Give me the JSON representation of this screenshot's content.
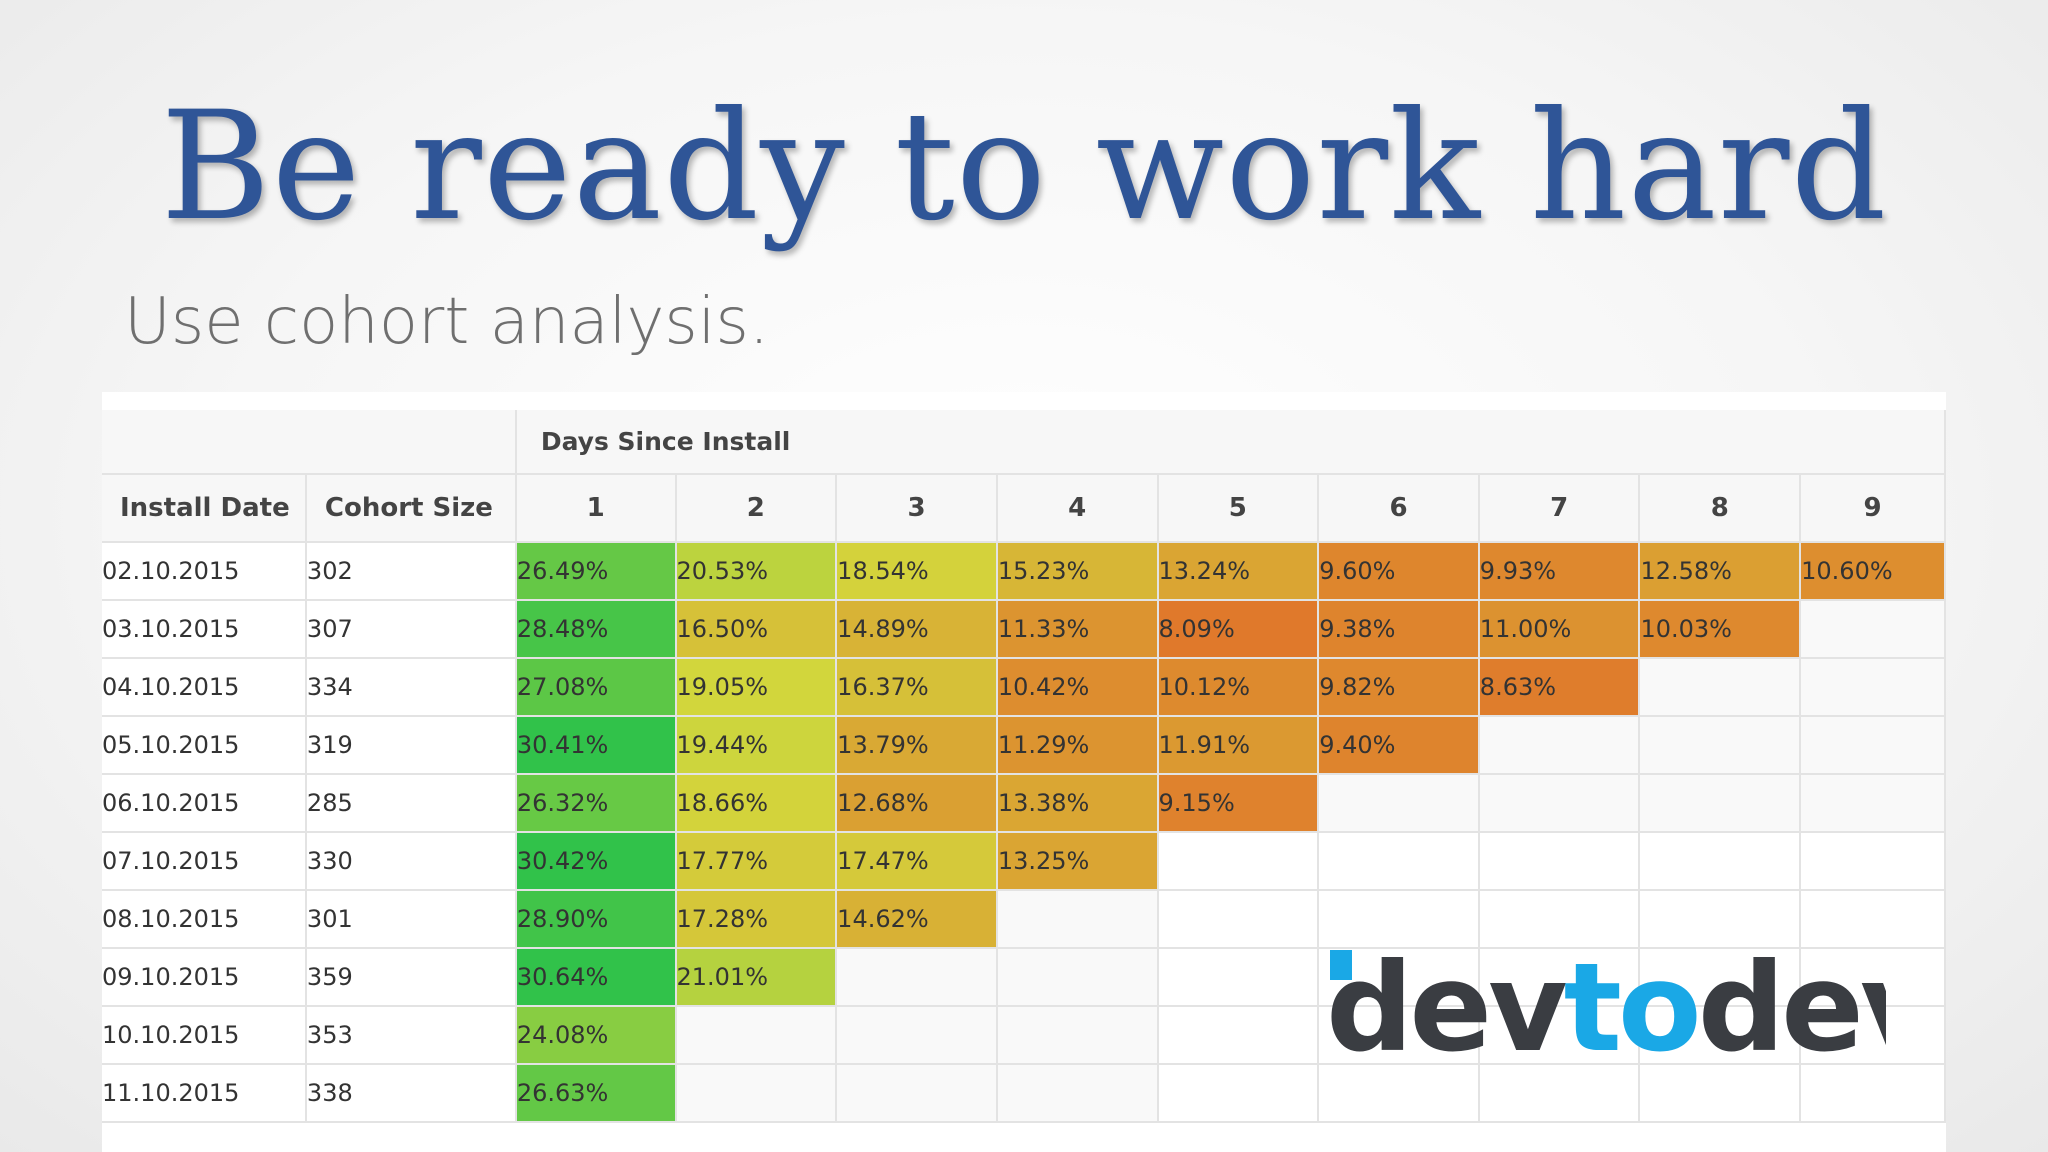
{
  "slide": {
    "title": "Be ready to work hard",
    "subtitle": "Use cohort analysis."
  },
  "table": {
    "group_header": "Days Since Install",
    "date_header": "Install Date",
    "size_header": "Cohort Size",
    "days": [
      "1",
      "2",
      "3",
      "4",
      "5",
      "6",
      "7",
      "8",
      "9"
    ],
    "rows": [
      {
        "date": "02.10.2015",
        "size": "302",
        "values": [
          "26.49%",
          "20.53%",
          "18.54%",
          "15.23%",
          "13.24%",
          "9.60%",
          "9.93%",
          "12.58%",
          "10.60%"
        ]
      },
      {
        "date": "03.10.2015",
        "size": "307",
        "values": [
          "28.48%",
          "16.50%",
          "14.89%",
          "11.33%",
          "8.09%",
          "9.38%",
          "11.00%",
          "10.03%"
        ]
      },
      {
        "date": "04.10.2015",
        "size": "334",
        "values": [
          "27.08%",
          "19.05%",
          "16.37%",
          "10.42%",
          "10.12%",
          "9.82%",
          "8.63%"
        ]
      },
      {
        "date": "05.10.2015",
        "size": "319",
        "values": [
          "30.41%",
          "19.44%",
          "13.79%",
          "11.29%",
          "11.91%",
          "9.40%"
        ]
      },
      {
        "date": "06.10.2015",
        "size": "285",
        "values": [
          "26.32%",
          "18.66%",
          "12.68%",
          "13.38%",
          "9.15%"
        ]
      },
      {
        "date": "07.10.2015",
        "size": "330",
        "values": [
          "30.42%",
          "17.77%",
          "17.47%",
          "13.25%"
        ]
      },
      {
        "date": "08.10.2015",
        "size": "301",
        "values": [
          "28.90%",
          "17.28%",
          "14.62%"
        ]
      },
      {
        "date": "09.10.2015",
        "size": "359",
        "values": [
          "30.64%",
          "21.01%"
        ]
      },
      {
        "date": "10.10.2015",
        "size": "353",
        "values": [
          "24.08%"
        ]
      },
      {
        "date": "11.10.2015",
        "size": "338",
        "values": [
          "26.63%"
        ]
      }
    ],
    "heat_colors": {
      "high": "#31c24a",
      "mid": "#d3d63c",
      "low": "#e0782b"
    }
  },
  "logo": {
    "text_dark_1": "dev",
    "text_accent": "to",
    "text_dark_2": "dev",
    "dark_color": "#3a3d42",
    "accent_color": "#1aa8e6"
  }
}
